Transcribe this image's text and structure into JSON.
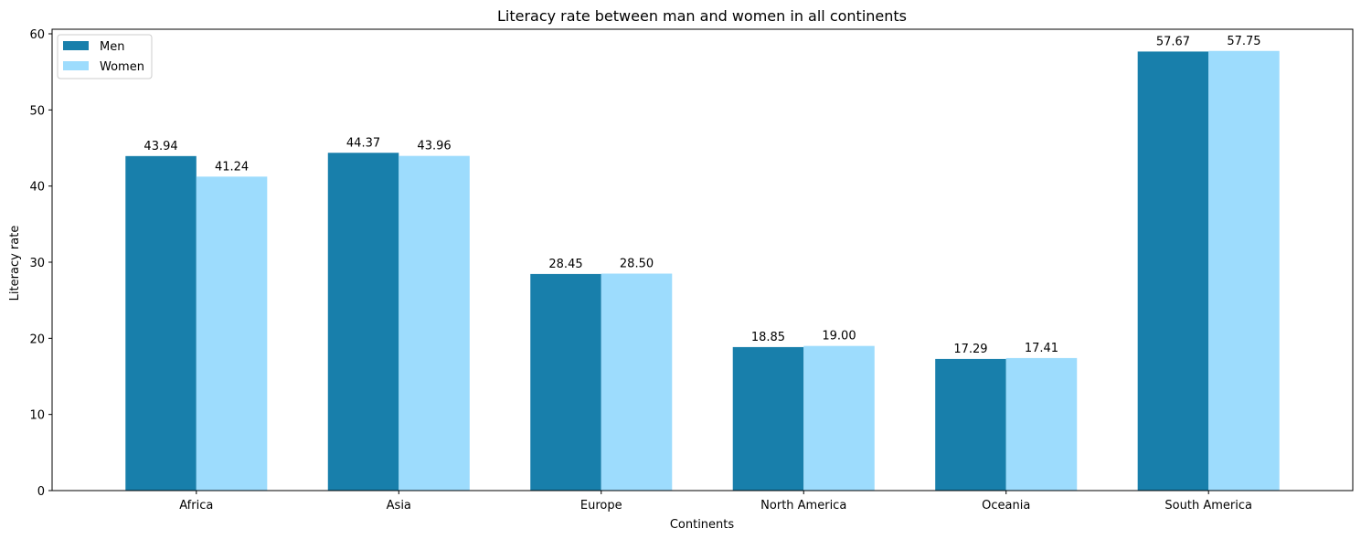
{
  "chart_data": {
    "type": "bar",
    "title": "Literacy rate between man and women in all continents",
    "xlabel": "Continents",
    "ylabel": "Literacy rate",
    "categories": [
      "Africa",
      "Asia",
      "Europe",
      "North America",
      "Oceania",
      "South America"
    ],
    "series": [
      {
        "name": "Men",
        "color": "#187fab",
        "values": [
          43.94,
          44.37,
          28.45,
          18.85,
          17.29,
          57.67
        ],
        "labels": [
          "43.94",
          "44.37",
          "28.45",
          "18.85",
          "17.29",
          "57.67"
        ]
      },
      {
        "name": "Women",
        "color": "#9ddcfd",
        "values": [
          41.24,
          43.96,
          28.5,
          19.0,
          17.41,
          57.75
        ],
        "labels": [
          "41.24",
          "43.96",
          "28.50",
          "19.00",
          "17.41",
          "57.75"
        ]
      }
    ],
    "ylim": [
      0,
      60.6
    ],
    "yticks": [
      0,
      10,
      20,
      30,
      40,
      50,
      60
    ],
    "ytick_labels": [
      "0",
      "10",
      "20",
      "30",
      "40",
      "50",
      "60"
    ],
    "grid": false,
    "legend_position": "top-left"
  }
}
